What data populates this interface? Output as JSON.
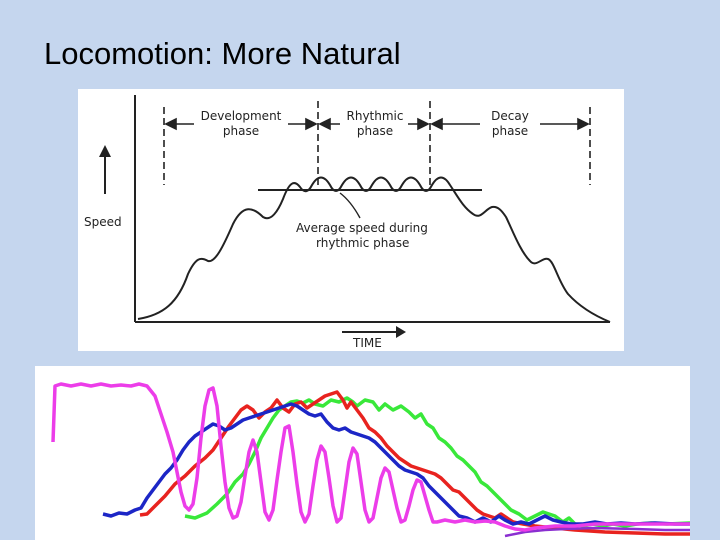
{
  "slide": {
    "title": "Locomotion: More Natural"
  },
  "diagram": {
    "phases": {
      "development": [
        "Development",
        "phase"
      ],
      "rhythmic": [
        "Rhythmic",
        "phase"
      ],
      "decay": [
        "Decay",
        "phase"
      ]
    },
    "y_axis_label": "Speed",
    "x_axis_label": "TIME",
    "average_label": [
      "Average speed during",
      "rhythmic phase"
    ]
  },
  "traces": {
    "colors": {
      "magenta": "#ec3de9",
      "red": "#e8231f",
      "blue": "#1c26c6",
      "green": "#39e83a",
      "purple": "#8a2fd0"
    }
  }
}
